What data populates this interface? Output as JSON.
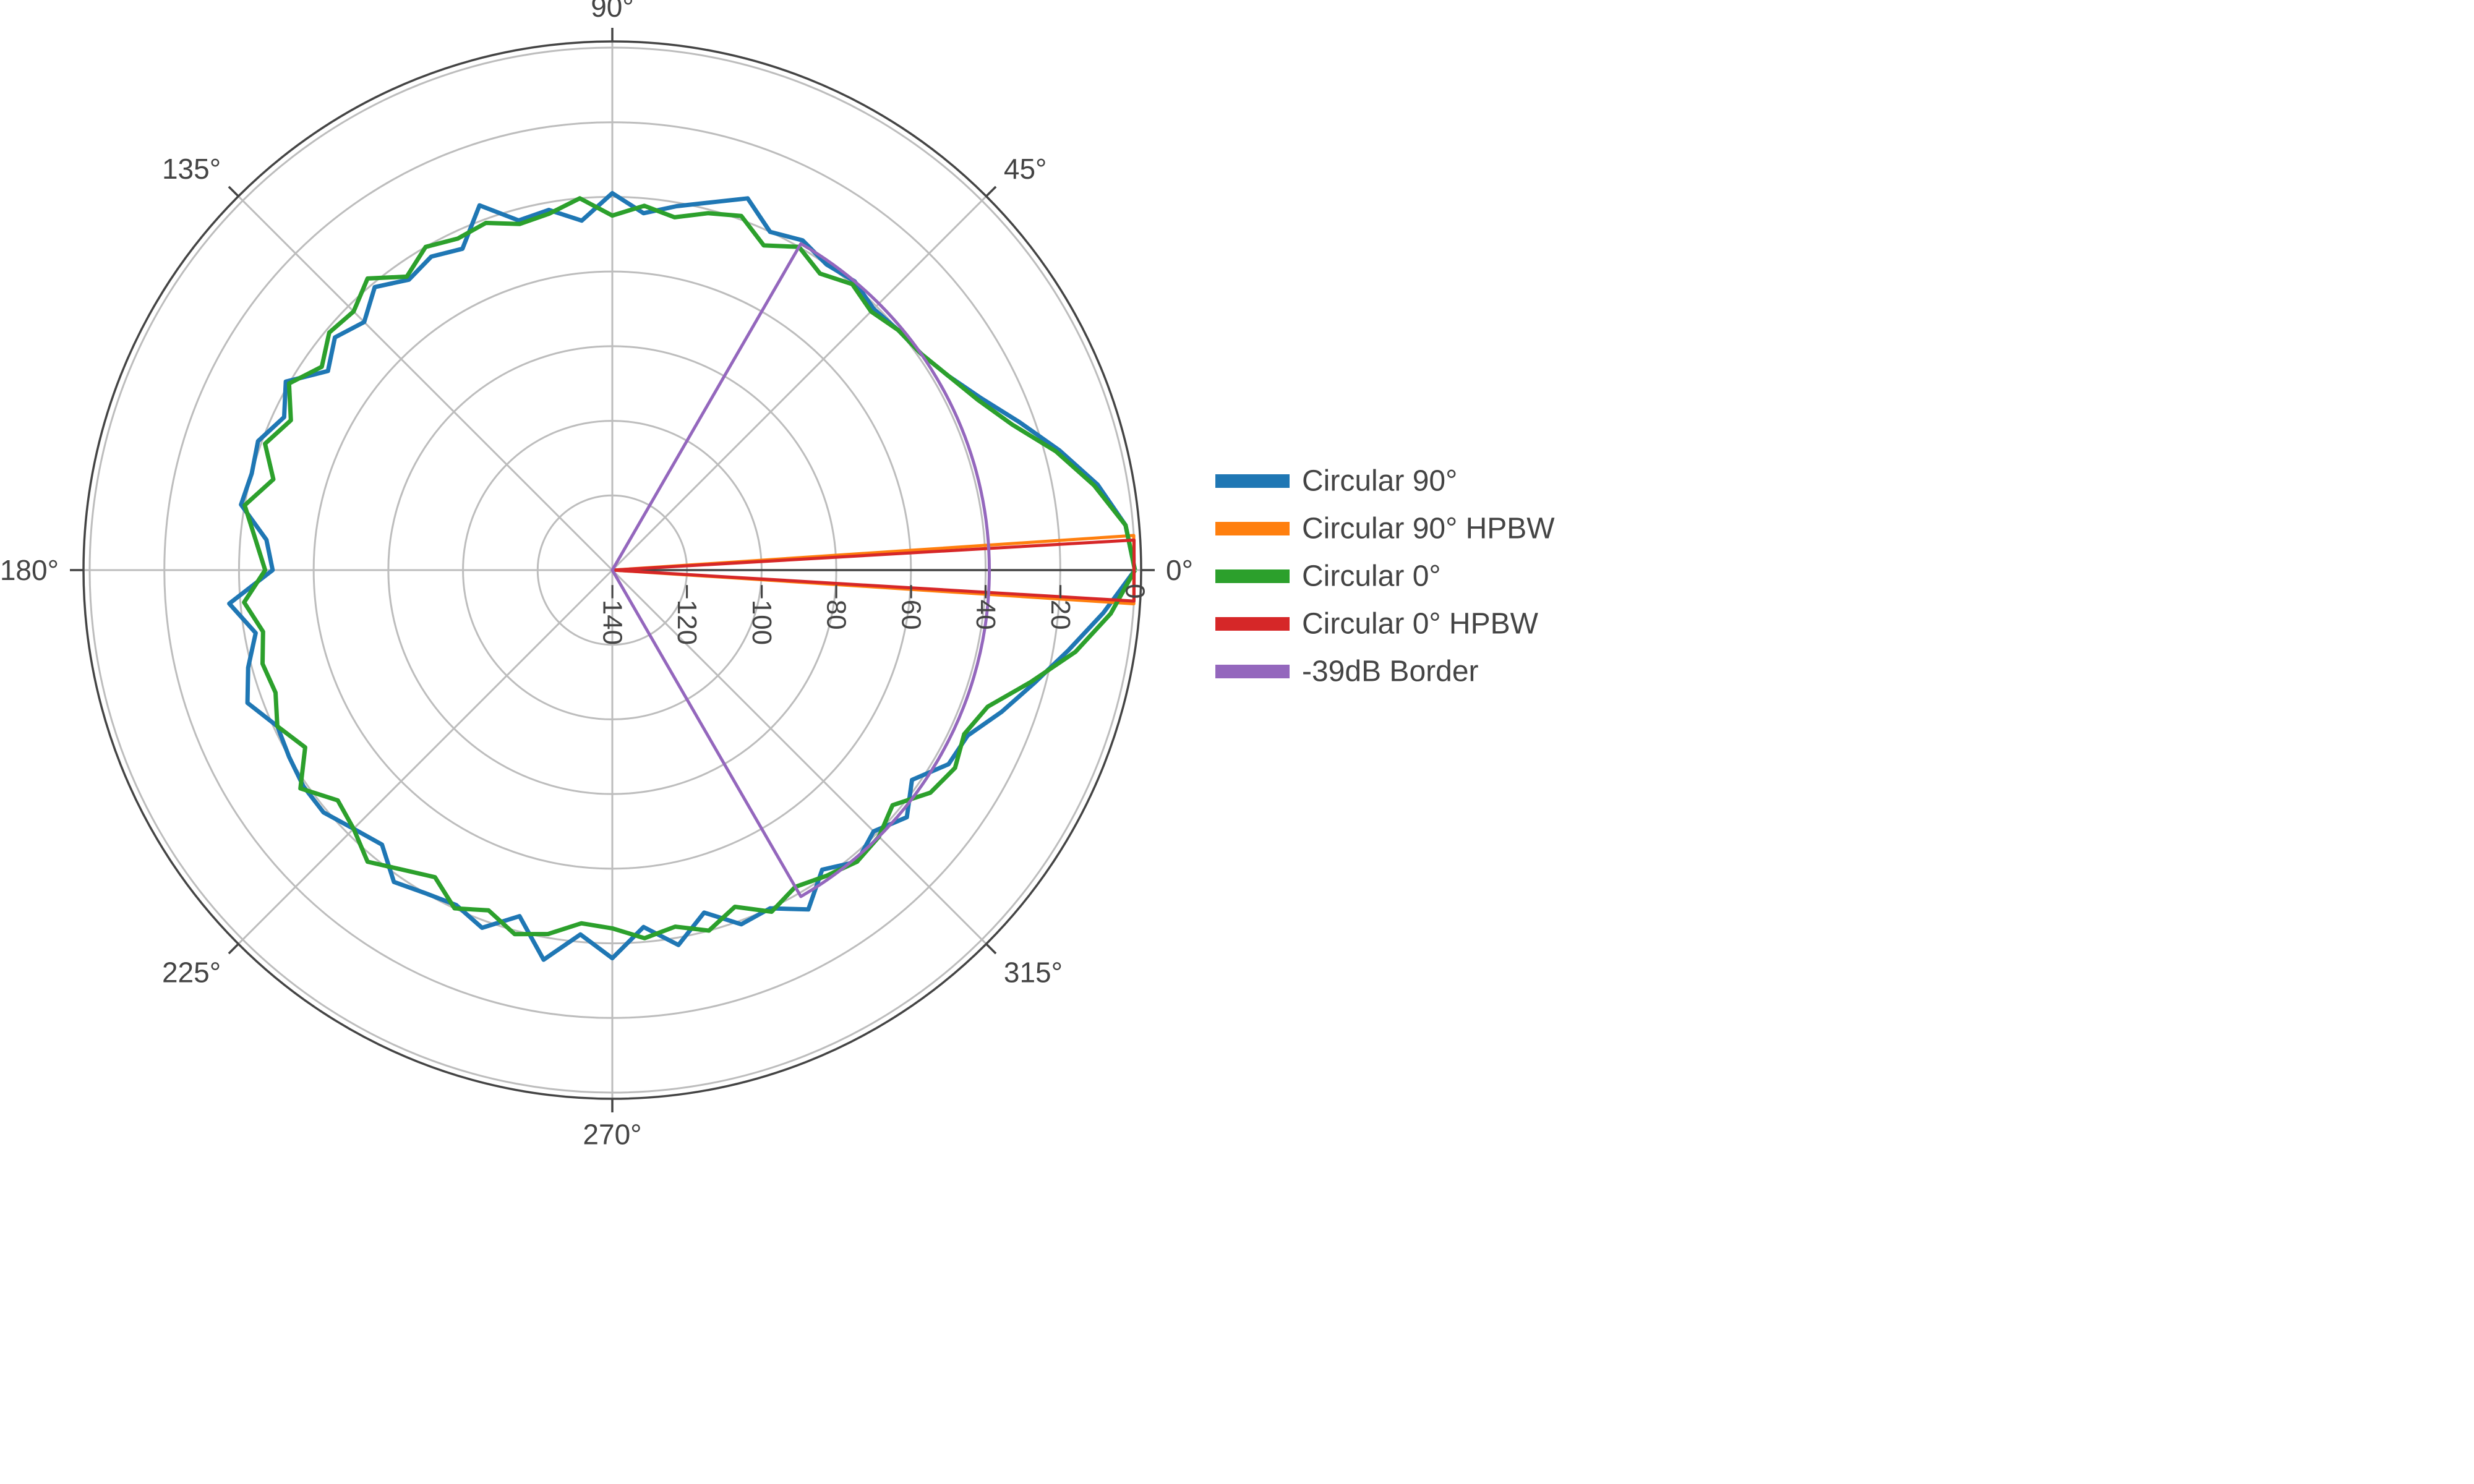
{
  "chart_data": {
    "type": "polar-line",
    "title": "",
    "angular_axis": {
      "unit": "deg",
      "direction": "counterclockwise",
      "rotation": 0,
      "tick_labels": [
        "0°",
        "45°",
        "90°",
        "135°",
        "180°",
        "225°",
        "270°",
        "315°"
      ]
    },
    "radial_axis": {
      "range": [
        -140,
        0
      ],
      "tick_values": [
        -140,
        -120,
        -100,
        -80,
        -60,
        -40,
        -20,
        0
      ],
      "tick_labels": [
        "−140",
        "−120",
        "−100",
        "−80",
        "−60",
        "−40",
        "−20",
        "0"
      ],
      "grid": true
    },
    "legend": {
      "position": "right",
      "entries": [
        "Circular 90°",
        "Circular 90° HPBW",
        "Circular 0°",
        "Circular 0° HPBW",
        "-39dB Border"
      ]
    },
    "series": [
      {
        "name": "Circular 90°",
        "color": "#1f77b4",
        "kind": "pattern",
        "theta": [
          0,
          5,
          10,
          15,
          20,
          25,
          30,
          35,
          40,
          45,
          50,
          55,
          60,
          65,
          70,
          75,
          80,
          85,
          90,
          95,
          100,
          105,
          110,
          115,
          120,
          125,
          130,
          135,
          140,
          145,
          150,
          155,
          160,
          165,
          170,
          175,
          180,
          185,
          190,
          195,
          200,
          205,
          210,
          215,
          220,
          225,
          230,
          235,
          240,
          245,
          250,
          255,
          260,
          265,
          270,
          275,
          280,
          285,
          290,
          295,
          300,
          305,
          310,
          315,
          320,
          325,
          330,
          335,
          340,
          345,
          350,
          355,
          360
        ],
        "r": [
          0,
          -2,
          -8,
          -16,
          -24,
          -31,
          -36,
          -39,
          -40,
          -41,
          -39,
          -40,
          -38,
          -40,
          -34,
          -38,
          -41,
          -44,
          -39,
          -46,
          -42,
          -43,
          -36,
          -45,
          -43,
          -45,
          -41,
          -46,
          -43,
          -47,
          -39,
          -43,
          -39,
          -40,
          -39,
          -47,
          -49,
          -37,
          -43,
          -39,
          -36,
          -41,
          -40,
          -39,
          -39,
          -42,
          -44,
          -38,
          -40,
          -41,
          -38,
          -44,
          -34,
          -42,
          -36,
          -44,
          -38,
          -45,
          -39,
          -40,
          -35,
          -42,
          -38,
          -41,
          -37,
          -42,
          -36,
          -35,
          -29,
          -23,
          -16,
          -8,
          0
        ]
      },
      {
        "name": "Circular 90° HPBW",
        "color": "#ff7f0e",
        "kind": "sector",
        "theta": [
          0,
          3.8,
          356.3,
          0
        ],
        "r": [
          -140,
          0,
          0,
          -140
        ]
      },
      {
        "name": "Circular 0°",
        "color": "#2ca02c",
        "kind": "pattern",
        "theta": [
          0,
          5,
          10,
          15,
          20,
          25,
          30,
          35,
          40,
          45,
          50,
          55,
          60,
          65,
          70,
          75,
          80,
          85,
          90,
          95,
          100,
          105,
          110,
          115,
          120,
          125,
          130,
          135,
          140,
          145,
          150,
          155,
          160,
          165,
          170,
          175,
          180,
          185,
          190,
          195,
          200,
          205,
          210,
          215,
          220,
          225,
          230,
          235,
          240,
          245,
          250,
          255,
          260,
          265,
          270,
          275,
          280,
          285,
          290,
          295,
          300,
          305,
          310,
          315,
          320,
          325,
          330,
          335,
          340,
          345,
          350,
          355,
          360
        ],
        "r": [
          0,
          -2,
          -9,
          -17,
          -26,
          -32,
          -36,
          -39,
          -40,
          -42,
          -40,
          -43,
          -40,
          -44,
          -39,
          -41,
          -44,
          -42,
          -45,
          -40,
          -43,
          -44,
          -41,
          -42,
          -40,
          -44,
          -38,
          -42,
          -41,
          -45,
          -40,
          -45,
          -41,
          -46,
          -40,
          -44,
          -47,
          -41,
          -45,
          -43,
          -44,
          -41,
          -45,
          -38,
          -44,
          -42,
          -38,
          -42,
          -45,
          -40,
          -43,
          -39,
          -41,
          -45,
          -44,
          -41,
          -43,
          -40,
          -44,
          -39,
          -42,
          -40,
          -38,
          -39,
          -42,
          -36,
          -34,
          -36,
          -33,
          -24,
          -14,
          -6,
          0
        ]
      },
      {
        "name": "Circular 0° HPBW",
        "color": "#d62728",
        "kind": "sector",
        "theta": [
          0,
          3.3,
          356.6,
          0
        ],
        "r": [
          -140,
          0,
          0,
          -140
        ]
      },
      {
        "name": "-39dB Border",
        "color": "#9467bd",
        "kind": "border",
        "sector_start_deg": 60,
        "sector_end_deg": 300,
        "level_db": -39
      }
    ]
  }
}
